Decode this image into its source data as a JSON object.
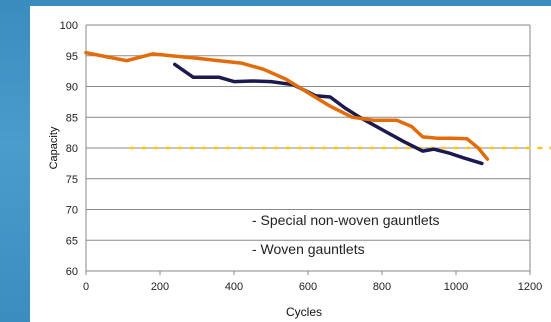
{
  "chart_data": {
    "type": "line",
    "xlabel": "Cycles",
    "ylabel": "Capacity",
    "xlim": [
      0,
      1200
    ],
    "ylim": [
      60,
      100
    ],
    "x_ticks": [
      "0",
      "200",
      "400",
      "600",
      "800",
      "1000",
      "1200"
    ],
    "y_ticks": [
      "100",
      "95",
      "90",
      "85",
      "80",
      "75",
      "70",
      "65",
      "60"
    ],
    "grid": "horizontal",
    "legend_entries": [
      "- Special non-woven gauntlets",
      "- Woven gauntlets"
    ],
    "series": [
      {
        "color": "#e36c0a",
        "x": [
          0,
          50,
          110,
          180,
          230,
          300,
          360,
          420,
          480,
          540,
          600,
          660,
          720,
          780,
          840,
          880,
          910,
          950,
          990,
          1030,
          1060,
          1085
        ],
        "y": [
          95.5,
          94.9,
          94.2,
          95.3,
          95.0,
          94.6,
          94.2,
          93.8,
          92.8,
          91.2,
          89.0,
          86.8,
          85.0,
          84.5,
          84.5,
          83.5,
          81.8,
          81.6,
          81.6,
          81.5,
          80.0,
          78.2
        ]
      },
      {
        "color": "#1b1a4e",
        "x": [
          240,
          290,
          360,
          400,
          450,
          500,
          560,
          620,
          660,
          700,
          740,
          800,
          860,
          910,
          940,
          980,
          1020,
          1070
        ],
        "y": [
          93.6,
          91.5,
          91.5,
          90.8,
          90.9,
          90.8,
          90.3,
          88.5,
          88.3,
          86.5,
          85.0,
          83.0,
          81.0,
          79.5,
          79.8,
          79.2,
          78.4,
          77.5
        ]
      }
    ],
    "reference_line": {
      "y": 80,
      "color": "#f7c526",
      "style": "dotted"
    }
  }
}
